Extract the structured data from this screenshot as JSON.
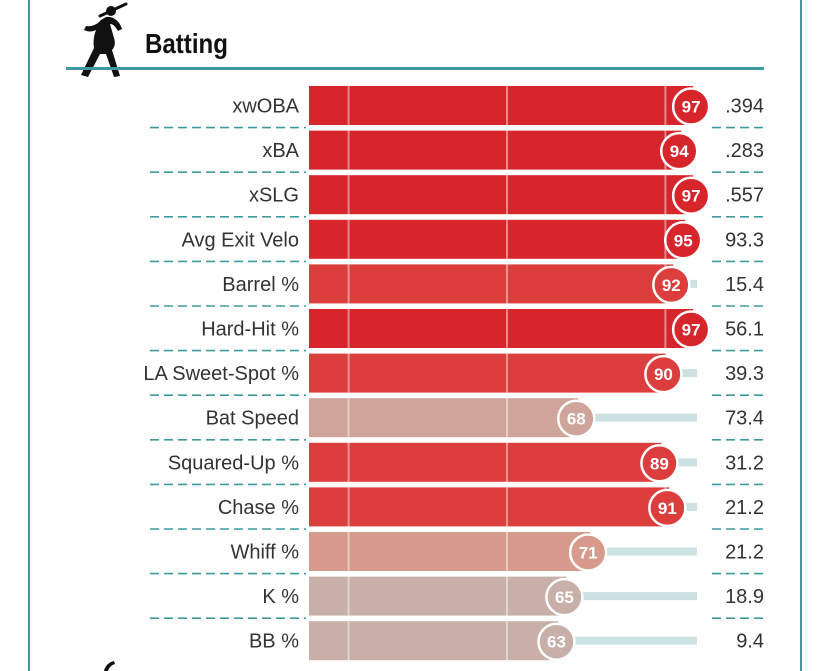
{
  "section": {
    "title": "Batting",
    "icon": "batter-icon"
  },
  "colors": {
    "frame": "#3f9a9f",
    "elite": "#d7252c",
    "great": "#db3e3c",
    "above_avg": "#d79b8e",
    "avg": "#cfa59b",
    "below_avg": "#c8b0a9",
    "track": "#cde0e2",
    "divider": "#3f9a9f"
  },
  "chart_data": {
    "type": "bar",
    "title": "Batting",
    "xlim": [
      0,
      100
    ],
    "categories": [
      "xwOBA",
      "xBA",
      "xSLG",
      "Avg Exit Velo",
      "Barrel %",
      "Hard-Hit %",
      "LA Sweet-Spot %",
      "Bat Speed",
      "Squared-Up %",
      "Chase %",
      "Whiff %",
      "K %",
      "BB %"
    ],
    "percentiles": [
      97,
      94,
      97,
      95,
      92,
      97,
      90,
      68,
      89,
      91,
      71,
      65,
      63
    ],
    "values": [
      ".394",
      ".283",
      ".557",
      "93.3",
      "15.4",
      "56.1",
      "39.3",
      "73.4",
      "31.2",
      "21.2",
      "21.2",
      "18.9",
      "9.4"
    ],
    "gridlines": [
      10,
      50,
      90
    ],
    "legend": "none"
  }
}
